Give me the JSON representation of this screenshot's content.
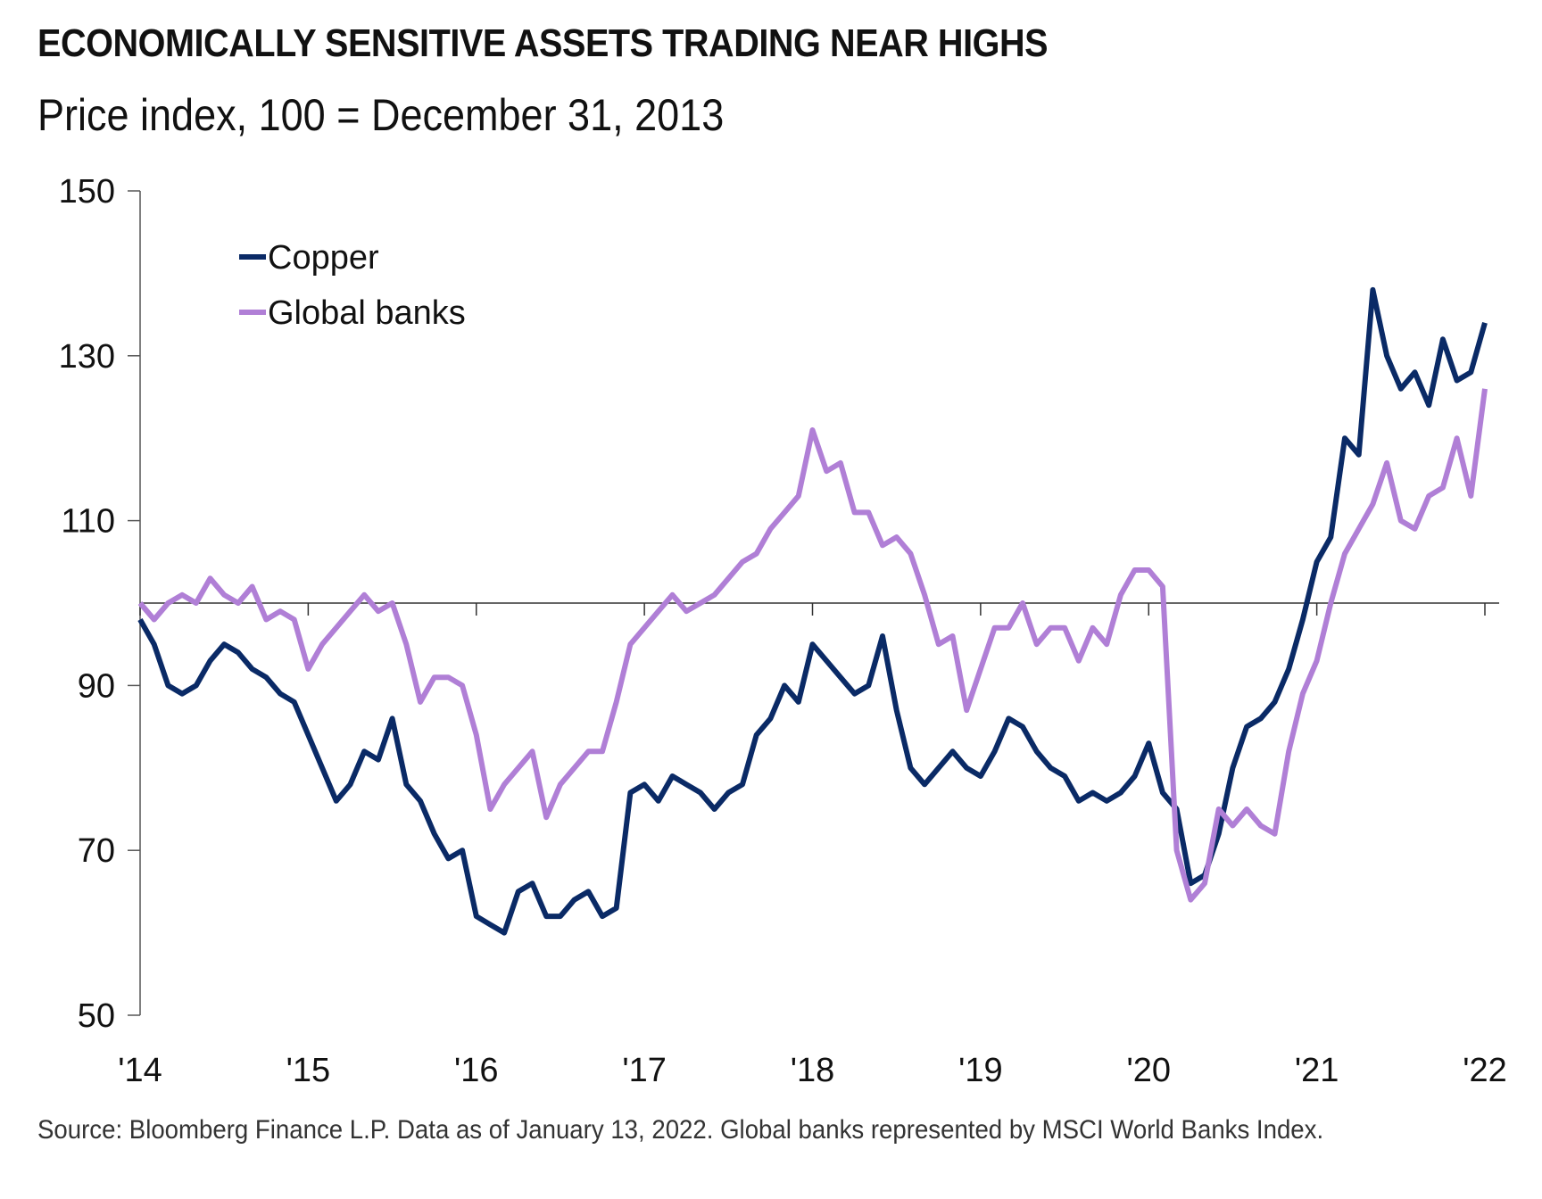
{
  "title": "ECONOMICALLY SENSITIVE ASSETS TRADING NEAR HIGHS",
  "subtitle": "Price index, 100 = December 31, 2013",
  "note": "Source: Bloomberg Finance L.P. Data as of January 13, 2022. Global banks represented by MSCI World Banks Index.",
  "chart_data": {
    "type": "line",
    "title": "ECONOMICALLY SENSITIVE ASSETS TRADING NEAR HIGHS",
    "ylabel": "Price index, 100 = December 31, 2013",
    "xlabel": "",
    "ylim": [
      50,
      150
    ],
    "yticks": [
      "50",
      "70",
      "90",
      "110",
      "130",
      "150"
    ],
    "ytick_values": [
      50,
      70,
      90,
      110,
      130,
      150
    ],
    "xticks": [
      "'14",
      "'15",
      "'16",
      "'17",
      "'18",
      "'19",
      "'20",
      "'21",
      "'22"
    ],
    "xlim": [
      2014,
      2022
    ],
    "reference_line": 100,
    "legend_position": "top-left",
    "x_frequency": "monthly, Jan 2014 - Jan 2022",
    "series": [
      {
        "name": "Copper",
        "color": "#0a2a66",
        "values": [
          98,
          95,
          90,
          89,
          90,
          93,
          95,
          94,
          92,
          91,
          89,
          88,
          84,
          80,
          76,
          78,
          82,
          81,
          86,
          78,
          76,
          72,
          69,
          70,
          62,
          61,
          60,
          65,
          66,
          62,
          62,
          64,
          65,
          62,
          63,
          77,
          78,
          76,
          79,
          78,
          77,
          75,
          77,
          78,
          84,
          86,
          90,
          88,
          95,
          93,
          91,
          89,
          90,
          96,
          87,
          80,
          78,
          80,
          82,
          80,
          79,
          82,
          86,
          85,
          82,
          80,
          79,
          76,
          77,
          76,
          77,
          79,
          83,
          77,
          75,
          66,
          67,
          72,
          80,
          85,
          86,
          88,
          92,
          98,
          105,
          108,
          120,
          118,
          138,
          130,
          126,
          128,
          124,
          132,
          127,
          128,
          134
        ]
      },
      {
        "name": "Global banks",
        "color": "#b07fd6",
        "values": [
          100,
          98,
          100,
          101,
          100,
          103,
          101,
          100,
          102,
          98,
          99,
          98,
          92,
          95,
          97,
          99,
          101,
          99,
          100,
          95,
          88,
          91,
          91,
          90,
          84,
          75,
          78,
          80,
          82,
          74,
          78,
          80,
          82,
          82,
          88,
          95,
          97,
          99,
          101,
          99,
          100,
          101,
          103,
          105,
          106,
          109,
          111,
          113,
          121,
          116,
          117,
          111,
          111,
          107,
          108,
          106,
          101,
          95,
          96,
          87,
          92,
          97,
          97,
          100,
          95,
          97,
          97,
          93,
          97,
          95,
          101,
          104,
          104,
          102,
          70,
          64,
          66,
          75,
          73,
          75,
          73,
          72,
          82,
          89,
          93,
          100,
          106,
          109,
          112,
          117,
          110,
          109,
          113,
          114,
          120,
          113,
          126
        ]
      }
    ]
  }
}
